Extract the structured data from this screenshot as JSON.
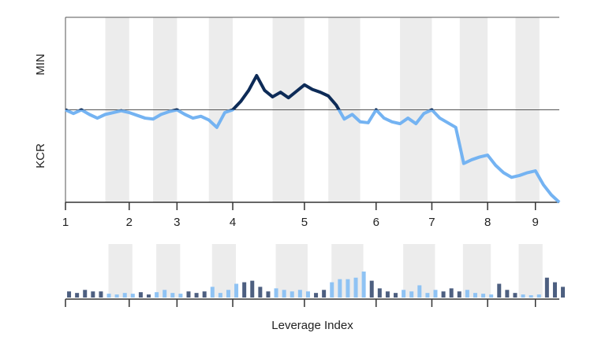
{
  "chart_data": {
    "type": "line",
    "x_label": "Leverage Index",
    "y_label_top": "MIN",
    "y_label_bottom": "KCR",
    "xlim": [
      0,
      62
    ],
    "xticks": [
      {
        "value": 0,
        "label": "1"
      },
      {
        "value": 8,
        "label": "2"
      },
      {
        "value": 14,
        "label": "3"
      },
      {
        "value": 21,
        "label": "4"
      },
      {
        "value": 30,
        "label": "5"
      },
      {
        "value": 39,
        "label": "6"
      },
      {
        "value": 46,
        "label": "7"
      },
      {
        "value": 53,
        "label": "8"
      },
      {
        "value": 59,
        "label": "9"
      }
    ],
    "ylim": [
      -100,
      100
    ],
    "baseline": 0,
    "color_above": "#0d2b57",
    "color_below": "#74b3f2",
    "band_color": "#ececec",
    "bands": [
      [
        5,
        8
      ],
      [
        11,
        14
      ],
      [
        18,
        21
      ],
      [
        26,
        30
      ],
      [
        33,
        37
      ],
      [
        42,
        46
      ],
      [
        49.5,
        53
      ],
      [
        56.5,
        59.5
      ]
    ],
    "values": [
      0,
      -4,
      0,
      -5,
      -9,
      -5,
      -3,
      -1,
      -3,
      -6,
      -9,
      -10,
      -5,
      -2,
      0,
      -5,
      -9,
      -7,
      -11,
      -19,
      -3,
      0,
      9,
      21,
      37,
      21,
      14,
      19,
      13,
      20,
      27,
      22,
      19,
      15,
      5,
      -10,
      -5,
      -13,
      -14,
      0,
      -9,
      -13,
      -15,
      -9,
      -15,
      -4,
      0,
      -9,
      -14,
      -19,
      -58,
      -54,
      -51,
      -49,
      -60,
      -68,
      -73,
      -71,
      -68,
      -66,
      -81,
      -92,
      -100
    ],
    "bars": {
      "ylim": [
        0,
        70
      ],
      "color_out": "#4d5f80",
      "color_in": "#8fc3f4",
      "values": [
        8,
        6,
        10,
        8,
        8,
        5,
        4,
        6,
        5,
        7,
        4,
        7,
        10,
        6,
        5,
        8,
        6,
        8,
        14,
        6,
        10,
        18,
        20,
        22,
        14,
        8,
        12,
        10,
        8,
        10,
        8,
        6,
        10,
        20,
        24,
        24,
        26,
        34,
        22,
        12,
        8,
        6,
        10,
        8,
        16,
        6,
        10,
        8,
        12,
        8,
        10,
        6,
        5,
        4,
        18,
        10,
        6,
        4,
        3,
        4,
        26,
        20,
        14
      ]
    }
  }
}
